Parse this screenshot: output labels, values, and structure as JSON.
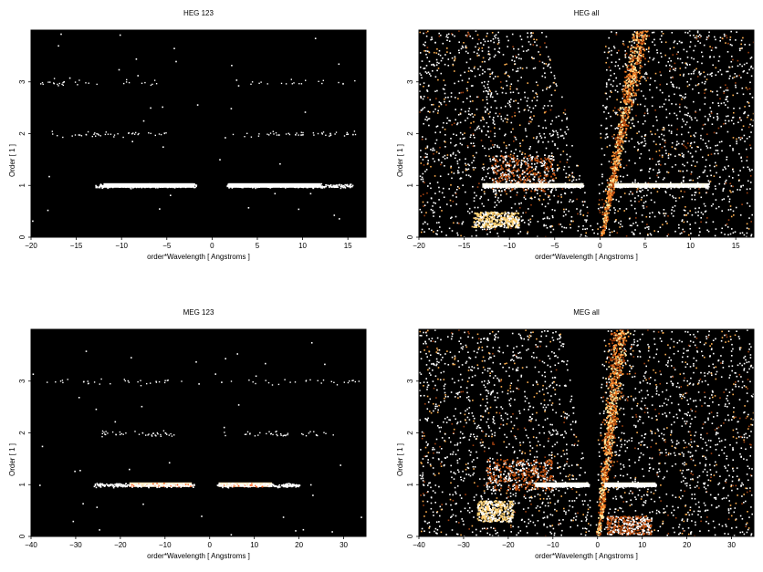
{
  "chart_data": [
    {
      "type": "heatmap",
      "title": "HEG 123",
      "xlabel": "order*Wavelength [ Angstroms ]",
      "ylabel": "Order [ 1 ]",
      "xlim": [
        -20,
        17
      ],
      "ylim": [
        0,
        4
      ],
      "xticks": [
        -20,
        -15,
        -10,
        -5,
        0,
        5,
        10,
        15
      ],
      "yticks": [
        0,
        1,
        2,
        3
      ],
      "bands": [
        {
          "order": 1,
          "x_ranges": [
            [
              -13,
              -1.8
            ],
            [
              1.6,
              15.5
            ]
          ],
          "core": [
            [
              -12,
              -2
            ],
            [
              1.8,
              12
            ]
          ],
          "core_color": "#ffffff",
          "density": 1.0
        },
        {
          "order": 2,
          "x_ranges": [
            [
              -18.5,
              -5
            ],
            [
              2,
              16
            ]
          ],
          "density": 0.18
        },
        {
          "order": 3,
          "x_ranges": [
            [
              -19,
              -6
            ],
            [
              3,
              16
            ]
          ],
          "density": 0.1
        }
      ],
      "wedge": null,
      "blobs": []
    },
    {
      "type": "heatmap",
      "title": "HEG all",
      "xlabel": "order*Wavelength [ Angstroms ]",
      "ylabel": "Order [ 1 ]",
      "xlim": [
        -20,
        17
      ],
      "ylim": [
        0,
        4
      ],
      "xticks": [
        -20,
        -15,
        -10,
        -5,
        0,
        5,
        10,
        15
      ],
      "yticks": [
        0,
        1,
        2,
        3
      ],
      "bands": [
        {
          "order": 1,
          "x_ranges": [
            [
              -13,
              -1.8
            ],
            [
              1.6,
              12
            ]
          ],
          "core": [
            [
              -13,
              -1.8
            ],
            [
              1.6,
              12
            ]
          ],
          "core_color": "#fffbe6",
          "density": 1.0
        }
      ],
      "wedge": {
        "apex_x": -0.5,
        "left_edge_x_at_top": -6.0,
        "right_edge_x_at_top": 0.5,
        "bright_x_at_top": 4.5
      },
      "blobs": [
        {
          "x": [
            -14,
            -9
          ],
          "y": [
            0.2,
            0.5
          ],
          "color": "#ffd070"
        },
        {
          "x": [
            -12,
            -5
          ],
          "y": [
            0.9,
            1.6
          ],
          "color": "#c05010"
        }
      ]
    },
    {
      "type": "heatmap",
      "title": "MEG 123",
      "xlabel": "order*Wavelength [ Angstroms ]",
      "ylabel": "Order [ 1 ]",
      "xlim": [
        -40,
        35
      ],
      "ylim": [
        0,
        4
      ],
      "xticks": [
        -40,
        -30,
        -20,
        -10,
        0,
        10,
        20,
        30
      ],
      "yticks": [
        0,
        1,
        2,
        3
      ],
      "bands": [
        {
          "order": 1,
          "x_ranges": [
            [
              -26,
              -3
            ],
            [
              1.5,
              20
            ]
          ],
          "core": [
            [
              -18,
              -4
            ],
            [
              2,
              14
            ]
          ],
          "core_color": "#ffe8c0",
          "density": 1.0
        },
        {
          "order": 2,
          "x_ranges": [
            [
              -25,
              -8
            ],
            [
              3,
              28
            ]
          ],
          "density": 0.16
        },
        {
          "order": 3,
          "x_ranges": [
            [
              -38,
              -5
            ],
            [
              4,
              34
            ]
          ],
          "density": 0.12
        }
      ],
      "wedge": null,
      "blobs": []
    },
    {
      "type": "heatmap",
      "title": "MEG all",
      "xlabel": "order*Wavelength [ Angstroms ]",
      "ylabel": "Order [ 1 ]",
      "xlim": [
        -40,
        35
      ],
      "ylim": [
        0,
        4
      ],
      "xticks": [
        -40,
        -30,
        -20,
        -10,
        0,
        10,
        20,
        30
      ],
      "yticks": [
        0,
        1,
        2,
        3
      ],
      "bands": [
        {
          "order": 1,
          "x_ranges": [
            [
              -14,
              -2
            ],
            [
              1.5,
              13
            ]
          ],
          "core": [
            [
              -14,
              -2
            ],
            [
              1.5,
              13
            ]
          ],
          "core_color": "#fffbe6",
          "density": 1.0
        }
      ],
      "wedge": {
        "apex_x": -0.5,
        "left_edge_x_at_top": -8.0,
        "right_edge_x_at_top": 0.5,
        "bright_x_at_top": 5.0
      },
      "blobs": [
        {
          "x": [
            -27,
            -19
          ],
          "y": [
            0.3,
            0.7
          ],
          "color": "#ffd070"
        },
        {
          "x": [
            -25,
            -10
          ],
          "y": [
            0.9,
            1.5
          ],
          "color": "#c05010"
        },
        {
          "x": [
            2,
            12
          ],
          "y": [
            0.05,
            0.4
          ],
          "color": "#c05010"
        }
      ]
    }
  ]
}
